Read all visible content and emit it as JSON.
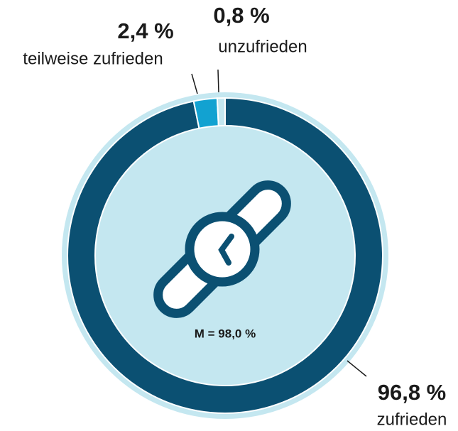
{
  "chart_data": {
    "type": "donut",
    "categories": [
      "zufrieden",
      "teilweise zufrieden",
      "unzufrieden"
    ],
    "values": [
      96.8,
      2.4,
      0.8
    ],
    "value_labels": [
      "96,8 %",
      "2,4 %",
      "0,8 %"
    ],
    "colors": [
      "#0b5072",
      "#12a2d1",
      "#c4e7f0"
    ],
    "annotation": "M = 98,0 %"
  }
}
